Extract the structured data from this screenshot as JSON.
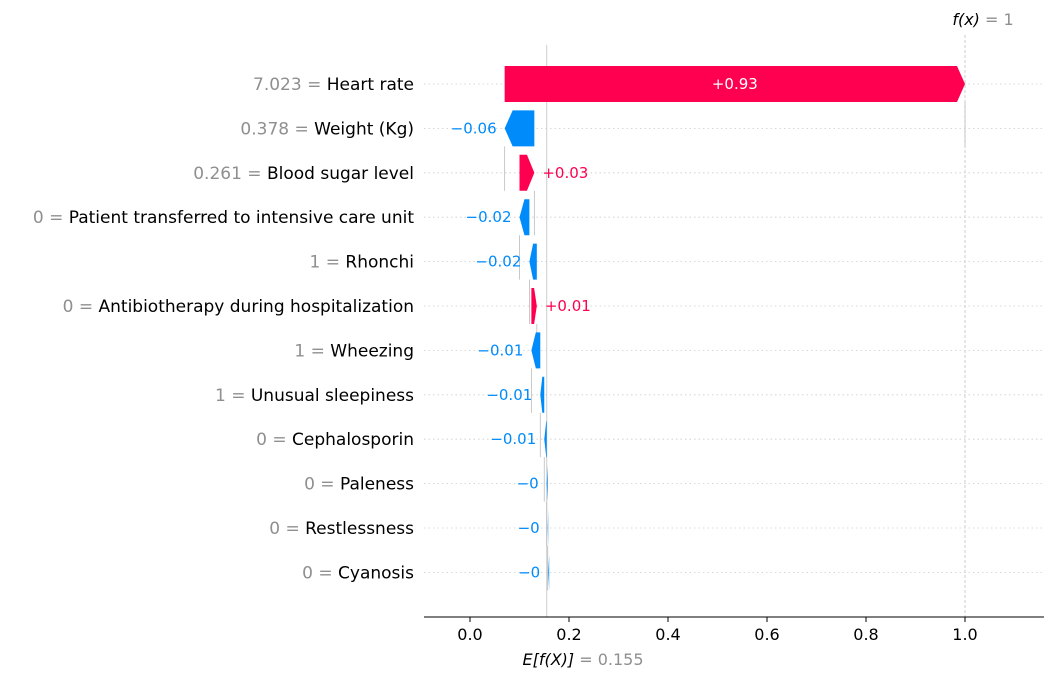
{
  "chart_data": {
    "type": "waterfall",
    "base_value": 0.155,
    "output_value": 1,
    "base_label": {
      "fx": "E[f(X)]",
      "eq": " = ",
      "value": "0.155"
    },
    "output_label": {
      "fx": "f(x)",
      "eq": " = ",
      "value": "1"
    },
    "xlim": [
      -0.09,
      1.15
    ],
    "x_ticks": [
      {
        "value": 0.0,
        "label": "0.0"
      },
      {
        "value": 0.2,
        "label": "0.2"
      },
      {
        "value": 0.4,
        "label": "0.4"
      },
      {
        "value": 0.6,
        "label": "0.6"
      },
      {
        "value": 0.8,
        "label": "0.8"
      },
      {
        "value": 1.0,
        "label": "1.0"
      }
    ],
    "grid": "horizontal dotted",
    "colors": {
      "positive": "#ff0051",
      "negative": "#008bfb",
      "muted": "#8f8f8f"
    },
    "features": [
      {
        "value_label": "7.023",
        "name": "Heart rate",
        "start": 0.07,
        "end": 1.0,
        "label": "+0.93"
      },
      {
        "value_label": "0.378",
        "name": "Weight (Kg)",
        "start": 0.13,
        "end": 0.07,
        "label": "−0.06"
      },
      {
        "value_label": "0.261",
        "name": "Blood sugar level",
        "start": 0.1,
        "end": 0.13,
        "label": "+0.03"
      },
      {
        "value_label": "0",
        "name": "Patient transferred to intensive care unit",
        "start": 0.12,
        "end": 0.1,
        "label": "−0.02"
      },
      {
        "value_label": "1",
        "name": "Rhonchi",
        "start": 0.135,
        "end": 0.12,
        "label": "−0.02"
      },
      {
        "value_label": "0",
        "name": "Antibiotherapy during hospitalization",
        "start": 0.124,
        "end": 0.135,
        "label": "+0.01"
      },
      {
        "value_label": "1",
        "name": "Wheezing",
        "start": 0.142,
        "end": 0.124,
        "label": "−0.01"
      },
      {
        "value_label": "1",
        "name": "Unusual sleepiness",
        "start": 0.15,
        "end": 0.142,
        "label": "−0.01"
      },
      {
        "value_label": "0",
        "name": "Cephalosporin",
        "start": 0.155,
        "end": 0.15,
        "label": "−0.01"
      },
      {
        "value_label": "0",
        "name": "Paleness",
        "start": 0.157,
        "end": 0.155,
        "label": "−0"
      },
      {
        "value_label": "0",
        "name": "Restlessness",
        "start": 0.158,
        "end": 0.157,
        "label": "−0"
      },
      {
        "value_label": "0",
        "name": "Cyanosis",
        "start": 0.16,
        "end": 0.158,
        "label": "−0"
      }
    ]
  }
}
